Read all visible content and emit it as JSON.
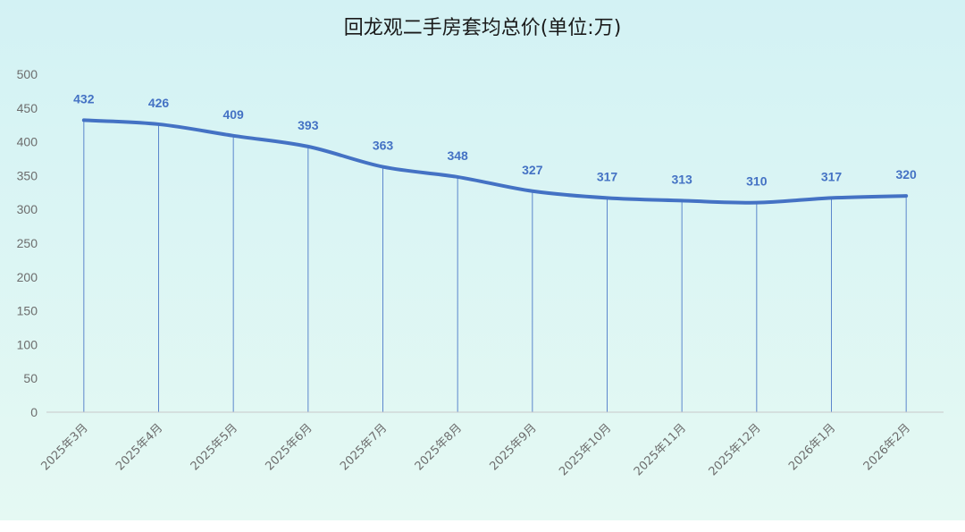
{
  "chart_data": {
    "type": "line",
    "title": "回龙观二手房套均总价(单位:万)",
    "xlabel": "",
    "ylabel": "",
    "categories": [
      "2025年3月",
      "2025年4月",
      "2025年5月",
      "2025年6月",
      "2025年7月",
      "2025年8月",
      "2025年9月",
      "2025年10月",
      "2025年11月",
      "2025年12月",
      "2026年1月",
      "2026年2月"
    ],
    "series": [
      {
        "values": [
          432,
          426,
          409,
          393,
          363,
          348,
          327,
          317,
          313,
          310,
          317,
          320
        ]
      }
    ],
    "ylim": [
      0,
      500
    ],
    "yticks": [
      0,
      50,
      100,
      150,
      200,
      250,
      300,
      350,
      400,
      450,
      500
    ],
    "grid": false,
    "drop_lines": true,
    "smooth": true,
    "data_labels": true,
    "legend": "none",
    "colors": {
      "line": "#4472c4",
      "drop_line": "#4472c4",
      "background_top": "#d3f2f4",
      "background_bottom": "#e5f9f3",
      "axis": "#c8c8c8"
    }
  }
}
